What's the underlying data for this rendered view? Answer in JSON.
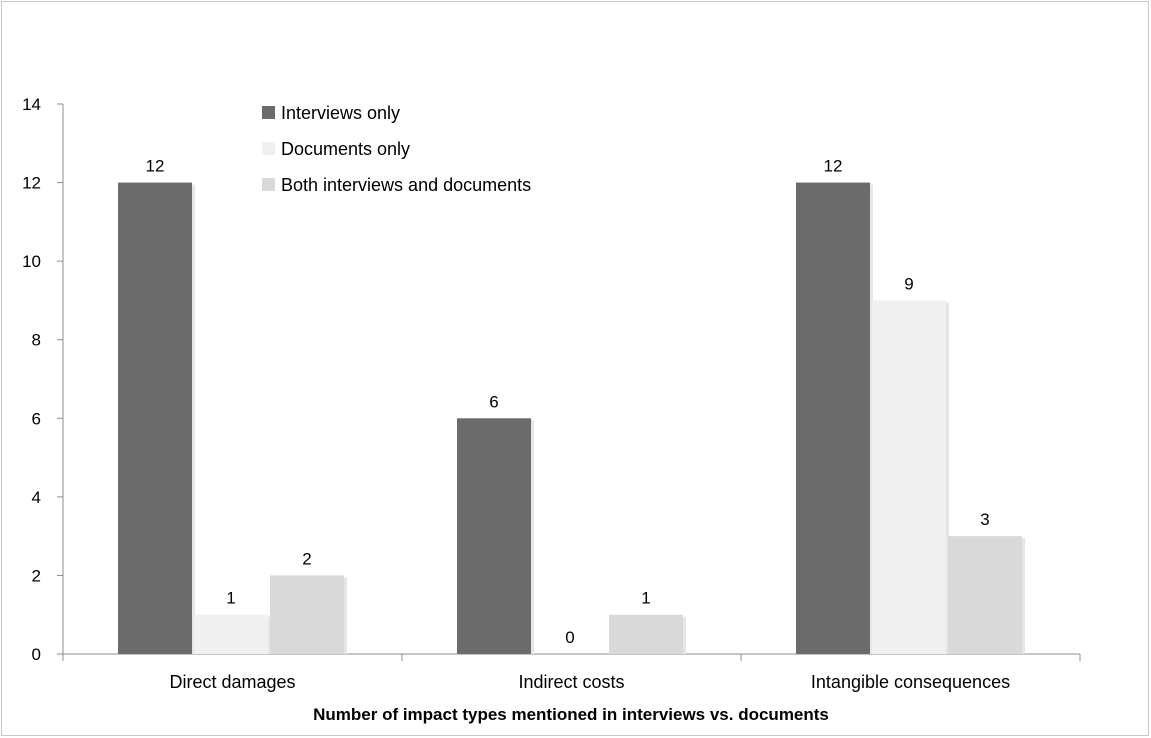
{
  "chart_data": {
    "type": "bar",
    "title": "",
    "xlabel": "Number of impact types mentioned in interviews vs. documents",
    "ylabel": "",
    "ylim": [
      0,
      14
    ],
    "yticks": [
      0,
      2,
      4,
      6,
      8,
      10,
      12,
      14
    ],
    "grid": false,
    "legend_position": "top-left",
    "categories": [
      "Direct damages",
      "Indirect costs",
      "Intangible consequences"
    ],
    "series": [
      {
        "name": "Interviews only",
        "values": [
          12,
          6,
          12
        ],
        "color": "#6b6b6b"
      },
      {
        "name": "Documents only",
        "values": [
          1,
          0,
          9
        ],
        "color": "#f0f0f0"
      },
      {
        "name": "Both interviews and documents",
        "values": [
          2,
          1,
          3
        ],
        "color": "#d9d9d9"
      }
    ]
  }
}
